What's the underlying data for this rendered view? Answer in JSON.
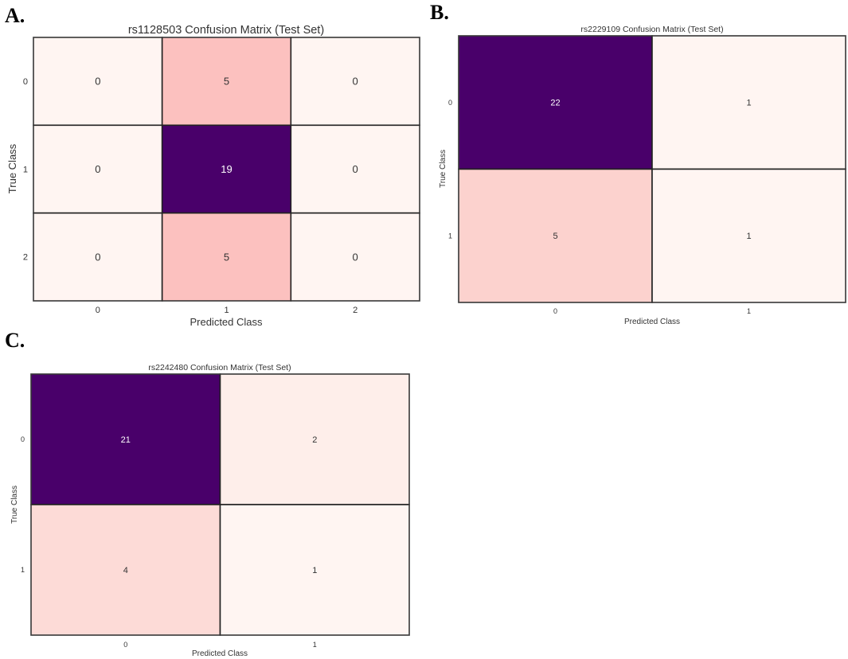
{
  "colors": {
    "zero": "#fff5f2",
    "max": "#49006a",
    "scale": [
      "#fff7f3",
      "#fde0dd",
      "#fcc5c0",
      "#fa9fb5",
      "#f768a1",
      "#dd3497",
      "#ae017e",
      "#7a0177",
      "#49006a"
    ],
    "text_dark": "#333333",
    "text_light": "#ffffff"
  },
  "chart_data": [
    {
      "panel": "A.",
      "type": "heatmap",
      "title": "rs1128503 Confusion Matrix (Test Set)",
      "xlabel": "Predicted Class",
      "ylabel": "True Class",
      "x_ticks": [
        "0",
        "1",
        "2"
      ],
      "y_ticks": [
        "0",
        "1",
        "2"
      ],
      "values": [
        [
          0,
          5,
          0
        ],
        [
          0,
          19,
          0
        ],
        [
          0,
          5,
          0
        ]
      ]
    },
    {
      "panel": "B.",
      "type": "heatmap",
      "title": "rs2229109 Confusion Matrix (Test Set)",
      "xlabel": "Predicted Class",
      "ylabel": "True Class",
      "x_ticks": [
        "0",
        "1"
      ],
      "y_ticks": [
        "0",
        "1"
      ],
      "values": [
        [
          22,
          1
        ],
        [
          5,
          1
        ]
      ]
    },
    {
      "panel": "C.",
      "type": "heatmap",
      "title": "rs2242480 Confusion Matrix (Test Set)",
      "xlabel": "Predicted Class",
      "ylabel": "True Class",
      "x_ticks": [
        "0",
        "1"
      ],
      "y_ticks": [
        "0",
        "1"
      ],
      "values": [
        [
          21,
          2
        ],
        [
          4,
          1
        ]
      ]
    }
  ]
}
